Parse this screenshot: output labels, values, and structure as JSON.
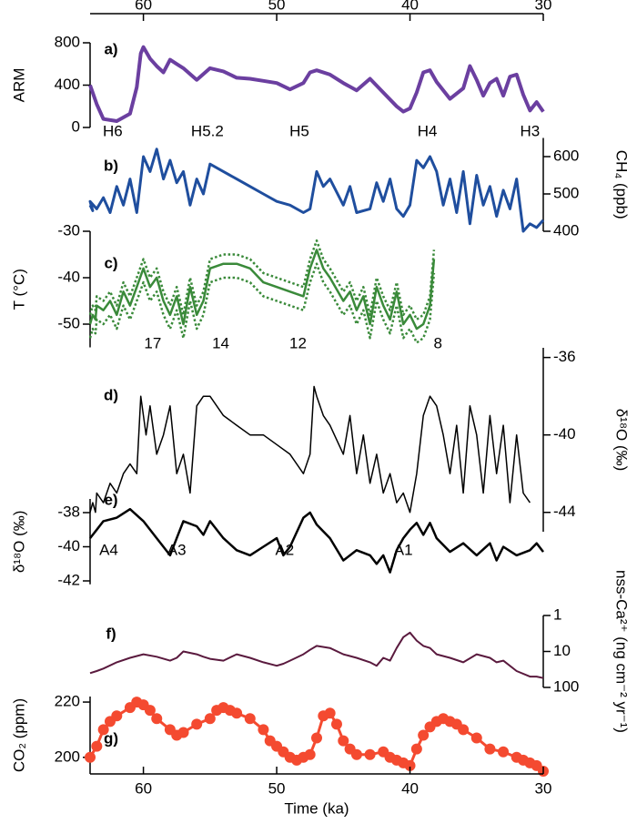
{
  "chart_data": [
    {
      "type": "line",
      "label": "a)",
      "y_label": "ARM",
      "y_axis_side": "left",
      "xlim": [
        64,
        30
      ],
      "xticks": [
        60,
        50,
        40,
        30
      ],
      "ylim": [
        0,
        800
      ],
      "yticks": [
        0,
        400,
        800
      ],
      "x": [
        64,
        63.5,
        63,
        62,
        61,
        60.5,
        60.2,
        60,
        59.5,
        59,
        58.5,
        58,
        57.5,
        57,
        56,
        55,
        54,
        53,
        52,
        51,
        50,
        49,
        48,
        47.5,
        47,
        46,
        45,
        44,
        43,
        42,
        41,
        40.5,
        40,
        39.5,
        39,
        38.5,
        38,
        37,
        36,
        35.5,
        35,
        34.5,
        34,
        33.5,
        33,
        32.5,
        32,
        31.5,
        31,
        30.5,
        30
      ],
      "series": [
        {
          "color": "#6b3fa0",
          "values": [
            400,
            220,
            80,
            60,
            130,
            380,
            700,
            760,
            650,
            580,
            520,
            640,
            600,
            560,
            450,
            560,
            530,
            470,
            460,
            440,
            420,
            360,
            420,
            520,
            540,
            500,
            420,
            350,
            460,
            330,
            200,
            150,
            180,
            330,
            520,
            540,
            430,
            270,
            370,
            580,
            450,
            300,
            420,
            460,
            300,
            480,
            500,
            310,
            160,
            240,
            150
          ]
        }
      ],
      "annotations": [
        {
          "text": "H6",
          "x": 62.3
        },
        {
          "text": "H5.2",
          "x": 55.2
        },
        {
          "text": "H5",
          "x": 48.3
        },
        {
          "text": "H4",
          "x": 38.7
        },
        {
          "text": "H3",
          "x": 31
        }
      ]
    },
    {
      "type": "line",
      "label": "b)",
      "y_label": "CH₄ (ppb)",
      "y_axis_side": "right",
      "xlim": [
        64,
        30
      ],
      "ylim": [
        400,
        650
      ],
      "yticks": [
        400,
        500,
        600
      ],
      "x": [
        64,
        63.8,
        64,
        63.5,
        63,
        62.5,
        62,
        61.5,
        61,
        60.5,
        60,
        59.5,
        59,
        58.5,
        58,
        57.5,
        57,
        56.5,
        56,
        55.5,
        55,
        54,
        53,
        52,
        51,
        50,
        49,
        48,
        47.5,
        47,
        46.5,
        46,
        45,
        44.5,
        44,
        43,
        42.5,
        42,
        41.5,
        41,
        40.5,
        40,
        39.5,
        39,
        38.5,
        38,
        37.5,
        37,
        36.5,
        36,
        35.5,
        35,
        34.5,
        34,
        33.5,
        33,
        32.5,
        32,
        31.5,
        31,
        30.5,
        30
      ],
      "series": [
        {
          "color": "#1f4e9e",
          "values": [
            470,
            455,
            480,
            460,
            490,
            450,
            520,
            470,
            540,
            450,
            600,
            560,
            620,
            540,
            590,
            530,
            560,
            470,
            540,
            500,
            580,
            560,
            540,
            520,
            500,
            480,
            470,
            450,
            460,
            560,
            520,
            540,
            470,
            520,
            450,
            460,
            530,
            480,
            540,
            460,
            440,
            470,
            590,
            570,
            600,
            560,
            470,
            540,
            450,
            560,
            420,
            550,
            470,
            520,
            440,
            510,
            460,
            540,
            400,
            420,
            410,
            430
          ]
        }
      ]
    },
    {
      "type": "line",
      "label": "c)",
      "y_label": "T (°C)",
      "y_axis_side": "left",
      "xlim": [
        64,
        30
      ],
      "ylim": [
        -55,
        -30
      ],
      "yticks": [
        -30,
        -40,
        -50
      ],
      "x": [
        64,
        63.8,
        63.6,
        63.5,
        63,
        62.5,
        62,
        61.5,
        61,
        60.5,
        60,
        59.5,
        59,
        58.5,
        58,
        57.5,
        57,
        56.5,
        56,
        55.5,
        55,
        54,
        53,
        52,
        51,
        50,
        49,
        48,
        47.5,
        47,
        46.5,
        46,
        45,
        44.5,
        44,
        43.5,
        43,
        42.5,
        42,
        41.5,
        41,
        40.5,
        40,
        39.5,
        39,
        38.5,
        38.2
      ],
      "series": [
        {
          "color": "#3a8a3a",
          "values": [
            -50,
            -48,
            -49,
            -46,
            -47,
            -45,
            -48,
            -43,
            -46,
            -42,
            -38,
            -42,
            -40,
            -45,
            -48,
            -44,
            -50,
            -42,
            -48,
            -45,
            -38,
            -37,
            -37,
            -38,
            -41,
            -42,
            -43,
            -44,
            -38,
            -34,
            -38,
            -40,
            -45,
            -43,
            -47,
            -44,
            -50,
            -42,
            -46,
            -49,
            -43,
            -50,
            -48,
            -51,
            -50,
            -46,
            -36
          ]
        },
        {
          "color": "#3a8a3a",
          "linestyle": "dotted",
          "values": [
            -48,
            -46,
            -47,
            -44,
            -45,
            -43,
            -46,
            -41,
            -44,
            -40,
            -36,
            -40,
            -38,
            -43,
            -46,
            -42,
            -48,
            -40,
            -46,
            -43,
            -36,
            -35,
            -35,
            -36,
            -39,
            -40,
            -41,
            -42,
            -36,
            -32,
            -36,
            -38,
            -43,
            -41,
            -45,
            -42,
            -48,
            -40,
            -44,
            -47,
            -41,
            -48,
            -46,
            -49,
            -48,
            -44,
            -34
          ]
        },
        {
          "color": "#3a8a3a",
          "linestyle": "dotted",
          "values": [
            -53,
            -51,
            -52,
            -49,
            -50,
            -48,
            -51,
            -46,
            -49,
            -45,
            -41,
            -45,
            -43,
            -48,
            -51,
            -47,
            -53,
            -45,
            -51,
            -48,
            -41,
            -40,
            -40,
            -41,
            -44,
            -45,
            -46,
            -47,
            -41,
            -37,
            -41,
            -43,
            -48,
            -46,
            -50,
            -47,
            -53,
            -45,
            -49,
            -52,
            -46,
            -53,
            -51,
            -54,
            -53,
            -49,
            -39
          ]
        }
      ]
    },
    {
      "type": "line",
      "label": "d)",
      "y_label": "δ¹⁸O (‰)",
      "y_axis_side": "right",
      "xlim": [
        64,
        30
      ],
      "ylim": [
        -45,
        -35.5
      ],
      "yticks": [
        -36,
        -40,
        -44
      ],
      "x": [
        64,
        63.8,
        63.6,
        63.5,
        63,
        62.5,
        62,
        61.5,
        61,
        60.5,
        60.2,
        59.8,
        59.5,
        59,
        58.5,
        58,
        57.5,
        57,
        56.5,
        56,
        55.5,
        55,
        54,
        53,
        52,
        51,
        50,
        49,
        48,
        47.5,
        47.2,
        47,
        46.5,
        46,
        45,
        44.5,
        44,
        43.5,
        43,
        42.5,
        42,
        41.5,
        41,
        40.5,
        40,
        39.5,
        39,
        38.5,
        38,
        37.5,
        37,
        36.5,
        36,
        35.5,
        35,
        34.5,
        34,
        33.5,
        33,
        32.5,
        32,
        31.5,
        31
      ],
      "series": [
        {
          "color": "#000000",
          "values": [
            -44,
            -43.5,
            -44,
            -43,
            -43.5,
            -42.5,
            -43,
            -42,
            -41.5,
            -42,
            -38,
            -40,
            -38.5,
            -41,
            -40,
            -38.5,
            -42,
            -41,
            -43,
            -38.5,
            -38,
            -38,
            -39,
            -39.5,
            -40,
            -40,
            -40.5,
            -41,
            -42,
            -41,
            -37.5,
            -38,
            -39,
            -39.5,
            -41,
            -39,
            -42,
            -40,
            -42.5,
            -41,
            -43,
            -42,
            -43.5,
            -43,
            -44,
            -42,
            -39,
            -38,
            -38.5,
            -40,
            -42,
            -39.5,
            -43,
            -38.5,
            -40,
            -43,
            -39,
            -42,
            -39.5,
            -43.5,
            -40,
            -43,
            -43.5
          ]
        }
      ],
      "annotations": [
        {
          "text": "17",
          "x": 59.3
        },
        {
          "text": "14",
          "x": 54.2
        },
        {
          "text": "12",
          "x": 48.4
        },
        {
          "text": "8",
          "x": 37.9
        }
      ]
    },
    {
      "type": "line",
      "label": "e)",
      "y_label": "δ¹⁸O (‰)",
      "y_axis_side": "left",
      "xlim": [
        64,
        30
      ],
      "ylim": [
        -42.2,
        -37.2
      ],
      "yticks": [
        -38,
        -40,
        -42
      ],
      "x": [
        64,
        63.5,
        63,
        62,
        61,
        60,
        59,
        58,
        57.5,
        57,
        56,
        55.5,
        55,
        54,
        53,
        52,
        51,
        50,
        49.5,
        49,
        48,
        47.5,
        47,
        46,
        45,
        44,
        43,
        42.5,
        42,
        41.5,
        41,
        40.5,
        40,
        39.5,
        39,
        38.5,
        38,
        37,
        36,
        35,
        34,
        33.5,
        33,
        32,
        31,
        30.5,
        30
      ],
      "series": [
        {
          "color": "#000000",
          "values": [
            -39.5,
            -39,
            -38.5,
            -38.3,
            -37.8,
            -38.5,
            -39.5,
            -40.5,
            -39.5,
            -38.5,
            -38.8,
            -39.3,
            -38.5,
            -39.5,
            -40.2,
            -40.5,
            -40,
            -39.5,
            -40.5,
            -40,
            -38.3,
            -38,
            -38.7,
            -39.5,
            -40.8,
            -40.2,
            -40.5,
            -41,
            -40.5,
            -41.5,
            -40.2,
            -39.5,
            -39,
            -38.6,
            -39.3,
            -38.6,
            -39.5,
            -40.3,
            -39.8,
            -40.5,
            -39.8,
            -40.8,
            -40,
            -40.5,
            -40.2,
            -39.8,
            -40.3
          ]
        }
      ],
      "annotations": [
        {
          "text": "A4",
          "x": 62.6
        },
        {
          "text": "A3",
          "x": 57.5
        },
        {
          "text": "A2",
          "x": 49.4
        },
        {
          "text": "A1",
          "x": 40.5
        }
      ]
    },
    {
      "type": "line",
      "label": "f)",
      "y_label": "nss-Ca²⁺ (ng cm⁻² yr⁻¹)",
      "y_axis_side": "right",
      "log_scale": true,
      "xlim": [
        64,
        30
      ],
      "ylim": [
        100,
        1
      ],
      "yticks": [
        1,
        10,
        100
      ],
      "x": [
        64,
        63.5,
        63,
        62,
        61,
        60,
        59,
        58,
        57.5,
        57,
        56,
        55.5,
        55,
        54,
        53,
        52,
        51,
        50,
        49.5,
        49,
        48,
        47.5,
        47,
        46,
        45,
        44,
        43,
        42.5,
        42,
        41.5,
        41,
        40.5,
        40,
        39.5,
        39,
        38.5,
        38,
        37,
        36,
        35,
        34,
        33.5,
        33,
        32,
        31,
        30.5,
        30
      ],
      "series": [
        {
          "color": "#5a1a3e",
          "values": [
            40,
            35,
            30,
            20,
            15,
            12,
            14,
            18,
            15,
            10,
            12,
            14,
            16,
            18,
            12,
            15,
            20,
            25,
            22,
            18,
            12,
            9,
            7,
            8,
            12,
            15,
            20,
            25,
            15,
            18,
            8,
            4,
            3,
            5,
            7,
            8,
            12,
            15,
            20,
            12,
            15,
            20,
            18,
            35,
            50,
            50,
            55
          ]
        }
      ]
    },
    {
      "type": "line",
      "label": "g)",
      "y_label": "CO₂ (ppm)",
      "x_label": "Time (ka)",
      "y_axis_side": "left",
      "markers": true,
      "xlim": [
        64,
        30
      ],
      "xticks": [
        60,
        50,
        40,
        30
      ],
      "ylim": [
        194,
        222
      ],
      "yticks": [
        200,
        220
      ],
      "x": [
        64,
        63.5,
        63,
        62.5,
        62,
        61,
        60.5,
        60,
        59.5,
        59,
        58,
        57.5,
        57,
        56,
        55,
        54.5,
        54,
        53.5,
        53,
        52,
        51,
        50.5,
        50,
        49.5,
        49,
        48.5,
        48,
        47.5,
        47,
        46.5,
        46,
        45.5,
        45,
        44.5,
        44,
        43,
        42,
        41.5,
        41,
        40.5,
        40,
        39.5,
        39,
        38.5,
        38,
        37.5,
        37,
        36.5,
        36,
        35,
        34,
        33,
        32,
        31.5,
        31,
        30.5,
        30
      ],
      "series": [
        {
          "color": "#f44a30",
          "values": [
            200,
            204,
            210,
            213,
            215,
            218,
            220,
            219,
            217,
            214,
            210,
            208,
            209,
            212,
            214,
            217,
            218,
            217,
            216,
            214,
            210,
            206,
            204,
            202,
            200,
            199,
            200,
            201,
            207,
            215,
            216,
            212,
            206,
            203,
            201,
            201,
            202,
            200,
            199,
            198,
            197,
            203,
            208,
            211,
            213,
            214,
            213,
            212,
            210,
            207,
            203,
            202,
            200,
            199,
            198,
            197,
            195
          ]
        }
      ]
    }
  ]
}
